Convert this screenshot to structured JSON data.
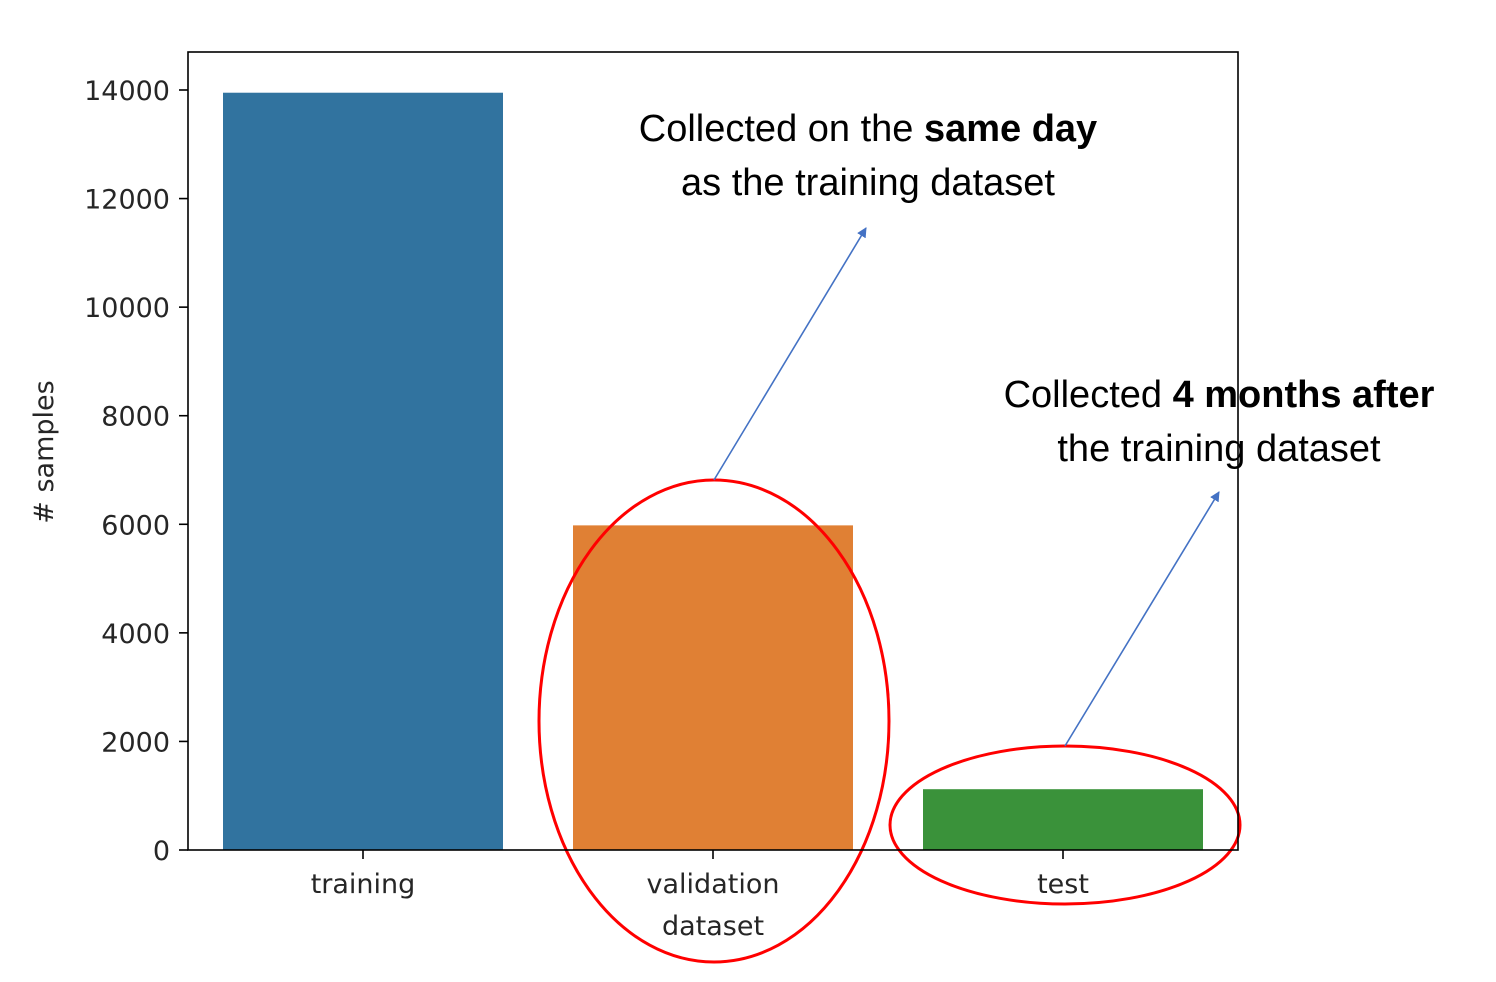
{
  "chart_data": {
    "type": "bar",
    "categories": [
      "training",
      "validation\ndataset",
      "test"
    ],
    "values": [
      13950,
      5980,
      1120
    ],
    "colors": [
      "#31739f",
      "#e08034",
      "#3a923a"
    ],
    "title": "",
    "xlabel": "",
    "ylabel": "# samples",
    "ylim": [
      0,
      14700
    ],
    "yticks": [
      0,
      2000,
      4000,
      6000,
      8000,
      10000,
      12000,
      14000
    ],
    "grid": false,
    "highlighted_categories": [
      "validation\ndataset",
      "test"
    ],
    "highlight_color": "#ff0000",
    "arrow_color": "#4472c4",
    "annotations": [
      {
        "target": "validation\ndataset",
        "lines": [
          [
            {
              "text": "Collected on the ",
              "bold": false
            },
            {
              "text": "same day",
              "bold": true
            }
          ],
          [
            {
              "text": "as the training dataset",
              "bold": false
            }
          ]
        ]
      },
      {
        "target": "test",
        "lines": [
          [
            {
              "text": "Collected ",
              "bold": false
            },
            {
              "text": "4 months after",
              "bold": true
            }
          ],
          [
            {
              "text": "the training dataset",
              "bold": false
            }
          ]
        ]
      }
    ]
  }
}
